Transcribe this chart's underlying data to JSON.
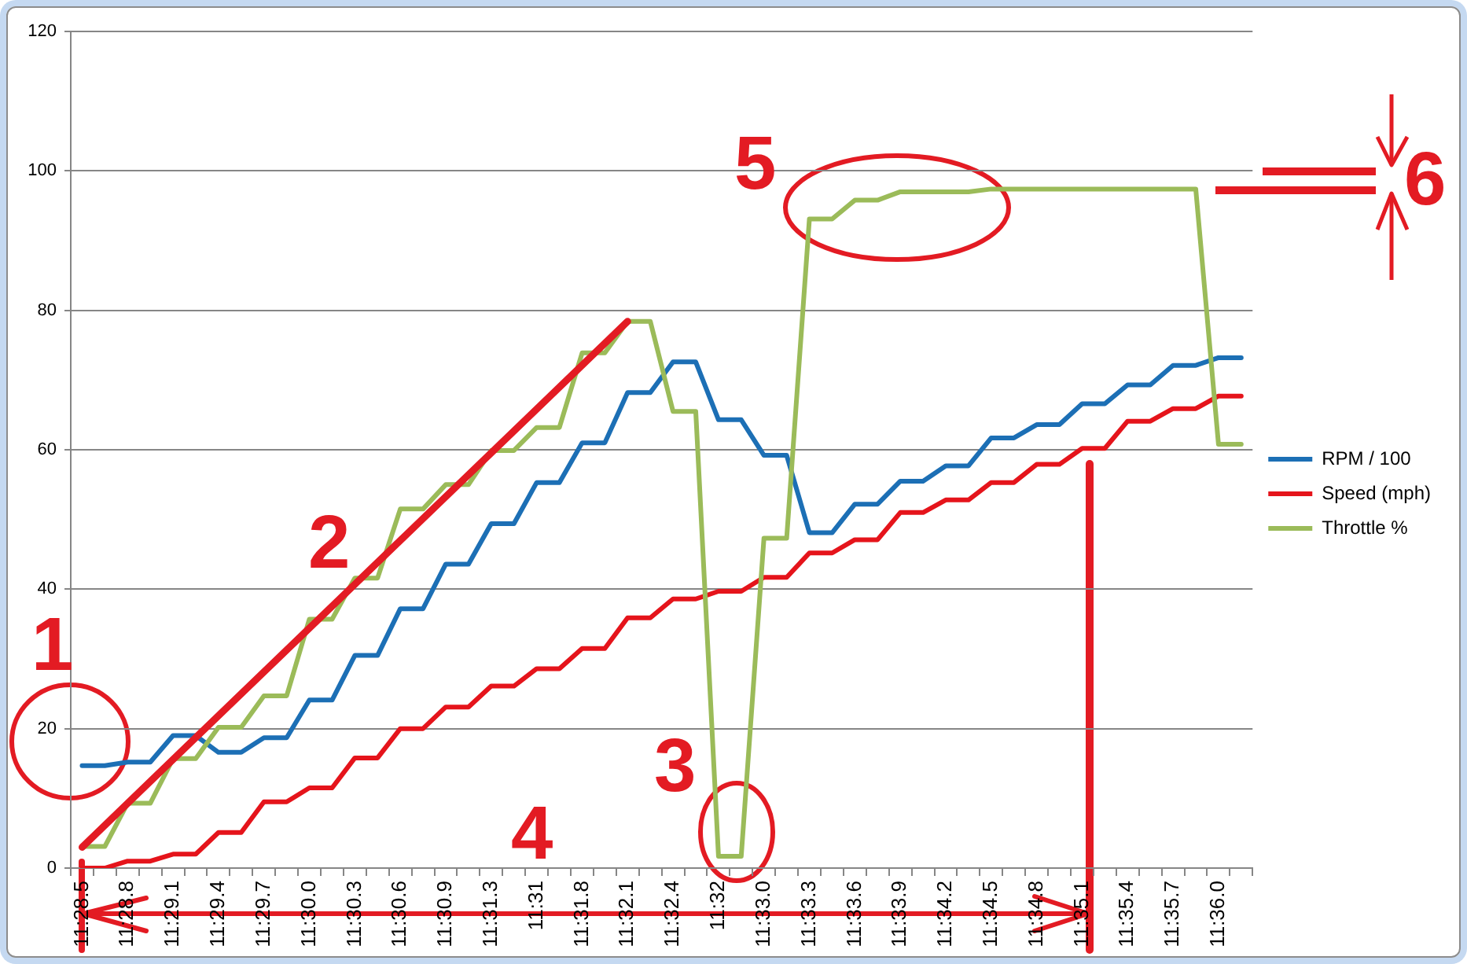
{
  "chart_data": {
    "type": "line",
    "categories": [
      "11:28.5",
      null,
      "11:28.8",
      null,
      "11:29.1",
      null,
      "11:29.4",
      null,
      "11:29.7",
      null,
      "11:30.0",
      null,
      "11:30.3",
      null,
      "11:30.6",
      null,
      "11:30.9",
      null,
      "11:31.3",
      null,
      "11:31",
      null,
      "11:31.8",
      null,
      "11:32.1",
      null,
      "11:32.4",
      null,
      "11:32",
      null,
      "11:33.0",
      null,
      "11:33.3",
      null,
      "11:33.6",
      null,
      "11:33.9",
      null,
      "11:34.2",
      null,
      "11:34.5",
      null,
      "11:34.8",
      null,
      "11:35.1",
      null,
      "11:35.4",
      null,
      "11:35.7",
      null,
      "11:36.0",
      null
    ],
    "series": [
      {
        "name": "RPM / 100",
        "color": "#1c6fb5",
        "values": [
          14.7,
          14.7,
          15.2,
          15.2,
          19.0,
          19.0,
          16.6,
          16.6,
          18.7,
          18.7,
          24.1,
          24.1,
          30.5,
          30.5,
          37.2,
          37.2,
          43.6,
          43.6,
          49.4,
          49.4,
          55.3,
          55.3,
          61.0,
          61.0,
          68.2,
          68.2,
          72.6,
          72.6,
          64.3,
          64.3,
          59.2,
          59.2,
          48.1,
          48.1,
          52.2,
          52.2,
          55.5,
          55.5,
          57.7,
          57.7,
          61.7,
          61.7,
          63.6,
          63.6,
          66.6,
          66.6,
          69.3,
          69.3,
          72.1,
          72.1,
          73.2,
          73.2
        ]
      },
      {
        "name": "Speed (mph)",
        "color": "#e5141b",
        "values": [
          0,
          0,
          1.0,
          1.0,
          2.0,
          2.0,
          5.1,
          5.1,
          9.5,
          9.5,
          11.5,
          11.5,
          15.8,
          15.8,
          20.0,
          20.0,
          23.1,
          23.1,
          26.1,
          26.1,
          28.6,
          28.6,
          31.5,
          31.5,
          35.9,
          35.9,
          38.6,
          38.6,
          39.7,
          39.7,
          41.7,
          41.7,
          45.2,
          45.2,
          47.1,
          47.1,
          51.0,
          51.0,
          52.8,
          52.8,
          55.3,
          55.3,
          57.9,
          57.9,
          60.2,
          60.2,
          64.1,
          64.1,
          65.9,
          65.9,
          67.7,
          67.7
        ]
      },
      {
        "name": "Throttle %",
        "color": "#9bbb59",
        "values": [
          3.1,
          3.1,
          9.3,
          9.3,
          15.7,
          15.7,
          20.2,
          20.2,
          24.7,
          24.7,
          35.7,
          35.7,
          41.6,
          41.6,
          51.5,
          51.5,
          55.0,
          55.0,
          59.9,
          59.9,
          63.2,
          63.2,
          73.9,
          73.9,
          78.4,
          78.4,
          65.5,
          65.5,
          1.7,
          1.7,
          47.3,
          47.3,
          93.1,
          93.1,
          95.8,
          95.8,
          97.0,
          97.0,
          97.0,
          97.0,
          97.4,
          97.4,
          97.4,
          97.4,
          97.4,
          97.4,
          97.4,
          97.4,
          97.4,
          97.4,
          60.8,
          60.8
        ]
      },
      {
        "type": "line",
        "color": "#e31b23",
        "x": [
          "11:28.5",
          "11:32.1"
        ],
        "values": [
          3.0,
          78.4
        ]
      }
    ],
    "ylim": [
      0,
      120
    ],
    "yticks": [
      0,
      20,
      40,
      60,
      80,
      100,
      120
    ],
    "grid": "y",
    "legend": "right",
    "annotations": [
      "1",
      "2",
      "3",
      "4",
      "5",
      "6"
    ]
  }
}
